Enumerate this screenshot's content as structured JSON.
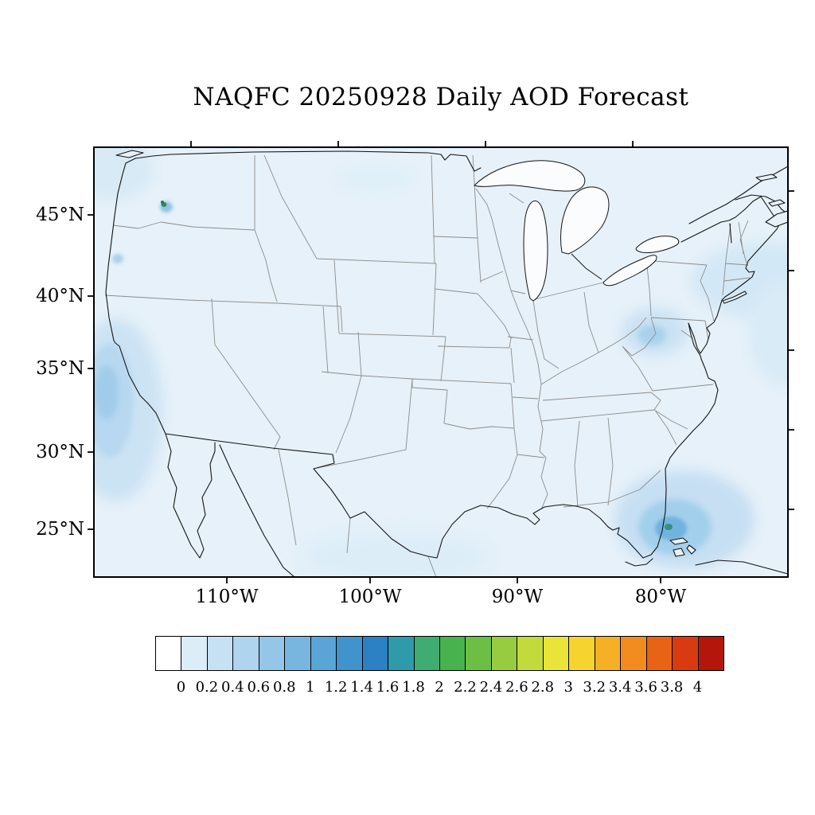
{
  "title": "NAQFC 20250928 Daily AOD Forecast",
  "map": {
    "lat_tick_labels": [
      "45°N",
      "40°N",
      "35°N",
      "30°N",
      "25°N"
    ],
    "lon_tick_labels": [
      "110°W",
      "100°W",
      "90°W",
      "80°W"
    ]
  },
  "colorbar": {
    "tick_labels": [
      "0",
      "0.2",
      "0.4",
      "0.6",
      "0.8",
      "1",
      "1.2",
      "1.4",
      "1.6",
      "1.8",
      "2",
      "2.2",
      "2.4",
      "2.6",
      "2.8",
      "3",
      "3.2",
      "3.4",
      "3.6",
      "3.8",
      "4"
    ],
    "colors": [
      "#ffffff",
      "#dcedf8",
      "#c6e1f4",
      "#aed4ee",
      "#94c6e7",
      "#78b6df",
      "#5ba5d6",
      "#4093cc",
      "#2b81c3",
      "#2f9aa9",
      "#3fac72",
      "#47b24e",
      "#6dbe45",
      "#98cc40",
      "#c3da3c",
      "#e9e438",
      "#f6d32f",
      "#f6b026",
      "#f28c1e",
      "#e96316",
      "#d93b10",
      "#b3170c"
    ]
  },
  "chart_data": {
    "type": "heatmap",
    "title": "NAQFC 20250928 Daily AOD Forecast",
    "model": "NAQFC",
    "forecast_date": "20250928",
    "variable": "Daily AOD (aerosol optical depth)",
    "region": "Continental United States and adjacent waters",
    "projection": "Lambert-conformal style CONUS map",
    "x_axis": {
      "label": "Longitude",
      "tick_labels": [
        "110°W",
        "100°W",
        "90°W",
        "80°W"
      ]
    },
    "y_axis": {
      "label": "Latitude",
      "tick_labels": [
        "45°N",
        "40°N",
        "35°N",
        "30°N",
        "25°N"
      ]
    },
    "colorbar_levels": [
      0,
      0.2,
      0.4,
      0.6,
      0.8,
      1,
      1.2,
      1.4,
      1.6,
      1.8,
      2,
      2.2,
      2.4,
      2.6,
      2.8,
      3,
      3.2,
      3.4,
      3.6,
      3.8,
      4
    ],
    "legend_position": "bottom",
    "grid": false,
    "base_field_color": "#e6f1f9",
    "features": [
      {
        "region": "Most of CONUS and surrounding ocean",
        "aod_range": "0.0-0.2"
      },
      {
        "region": "Pacific Ocean off southern and central California coast",
        "aod_range": "0.2-0.6"
      },
      {
        "region": "Atlantic near south Florida and the Bahamas",
        "aod_range": "0.4-1.6 with small intense teal-green core"
      },
      {
        "region": "Small hotspot in central Washington state",
        "aod_range": "1.0-1.6"
      },
      {
        "region": "Mid-Atlantic around Chesapeake Bay",
        "aod_range": "0.2-0.6"
      },
      {
        "region": "Northwest Atlantic off New England",
        "aod_range": "0.2-0.4"
      }
    ]
  }
}
